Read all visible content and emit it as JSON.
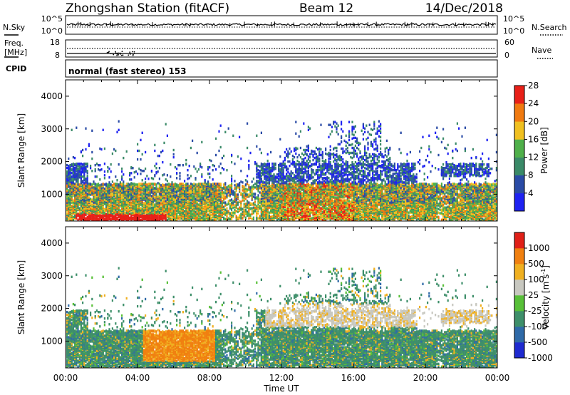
{
  "header": {
    "station": "Zhongshan Station (fitACF)",
    "beam": "Beam 12",
    "date": "14/Dec/2018"
  },
  "strips": {
    "nsky_label": "N.Sky",
    "nsky_ticks": [
      "10^5",
      "10^0"
    ],
    "nsearch_label": "N.Search",
    "nsearch_ticks": [
      "10^5",
      "10^0"
    ],
    "freq_label": "Freq.",
    "freq_unit": "[MHz]",
    "freq_ticks": [
      "18",
      "8"
    ],
    "nave_label": "Nave",
    "nave_ticks": [
      "60",
      "0"
    ],
    "cpid_label": "CPID",
    "cpid_text": "normal (fast stereo) 153"
  },
  "chart_data": [
    {
      "type": "heatmap",
      "panel": "power",
      "ylabel": "Slant Range [km]",
      "xlabel": "",
      "ylim": [
        180,
        4500
      ],
      "yticks": [
        1000,
        2000,
        3000,
        4000
      ],
      "xticks": [
        "00:00",
        "04:00",
        "08:00",
        "12:00",
        "16:00",
        "20:00",
        "00:00"
      ],
      "colorbar": {
        "label": "Power [dB]",
        "ticks": [
          4,
          8,
          12,
          16,
          20,
          24,
          28
        ],
        "colors": [
          "#1e22f2",
          "#2a4ba6",
          "#3a8a68",
          "#4fb04a",
          "#f0c020",
          "#f07a10",
          "#e82018"
        ]
      }
    },
    {
      "type": "heatmap",
      "panel": "velocity",
      "ylabel": "Slant Range [km]",
      "xlabel": "Time UT",
      "ylim": [
        180,
        4500
      ],
      "yticks": [
        1000,
        2000,
        3000,
        4000
      ],
      "xticks": [
        "00:00",
        "04:00",
        "08:00",
        "12:00",
        "16:00",
        "20:00",
        "00:00"
      ],
      "colorbar": {
        "label": "Velocity [m s",
        "label_exp": "-1",
        "label_close": "]",
        "ticks": [
          "1000",
          "500",
          "100",
          "25",
          "-25",
          "-100",
          "-500",
          "-1000"
        ],
        "colors": [
          "#1e2ad0",
          "#2f6aa8",
          "#3e8f6a",
          "#58c038",
          "#c8c8c0",
          "#f0b020",
          "#f08010",
          "#e02018"
        ]
      }
    }
  ]
}
